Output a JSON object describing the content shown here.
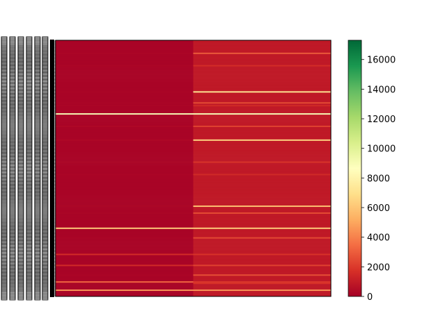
{
  "chart_data": {
    "type": "heatmap",
    "title": "",
    "xlabel": "",
    "ylabel": "",
    "columns": 2,
    "rows": 186,
    "colormap": "RdYlGn",
    "colorbar": {
      "min": 0,
      "max": 17300,
      "ticks": [
        0,
        2000,
        4000,
        6000,
        8000,
        10000,
        12000,
        14000,
        16000
      ],
      "tick_labels": [
        "0",
        "2000",
        "4000",
        "6000",
        "8000",
        "10000",
        "12000",
        "14000",
        "16000"
      ]
    },
    "row_tick_labels_legible": false,
    "highlighted_rows": [
      {
        "row": 9,
        "values": [
          200,
          2900
        ]
      },
      {
        "row": 18,
        "values": [
          200,
          1600
        ]
      },
      {
        "row": 37,
        "values": [
          200,
          7200
        ]
      },
      {
        "row": 45,
        "values": [
          200,
          2500
        ]
      },
      {
        "row": 47,
        "values": [
          200,
          1500
        ]
      },
      {
        "row": 53,
        "values": [
          9000,
          9000
        ]
      },
      {
        "row": 62,
        "values": [
          300,
          2200
        ]
      },
      {
        "row": 72,
        "values": [
          300,
          6500
        ]
      },
      {
        "row": 88,
        "values": [
          200,
          1800
        ]
      },
      {
        "row": 97,
        "values": [
          200,
          1500
        ]
      },
      {
        "row": 120,
        "values": [
          200,
          5800
        ]
      },
      {
        "row": 125,
        "values": [
          200,
          2500
        ]
      },
      {
        "row": 136,
        "values": [
          6200,
          6200
        ]
      },
      {
        "row": 143,
        "values": [
          200,
          2400
        ]
      },
      {
        "row": 155,
        "values": [
          1600,
          1800
        ]
      },
      {
        "row": 163,
        "values": [
          1500,
          2200
        ]
      },
      {
        "row": 170,
        "values": [
          200,
          2600
        ]
      },
      {
        "row": 175,
        "values": [
          3200,
          1900
        ]
      },
      {
        "row": 176,
        "values": [
          200,
          1700
        ]
      },
      {
        "row": 181,
        "values": [
          4500,
          4500
        ]
      }
    ],
    "baseline_row_value": [
      150,
      900
    ]
  }
}
